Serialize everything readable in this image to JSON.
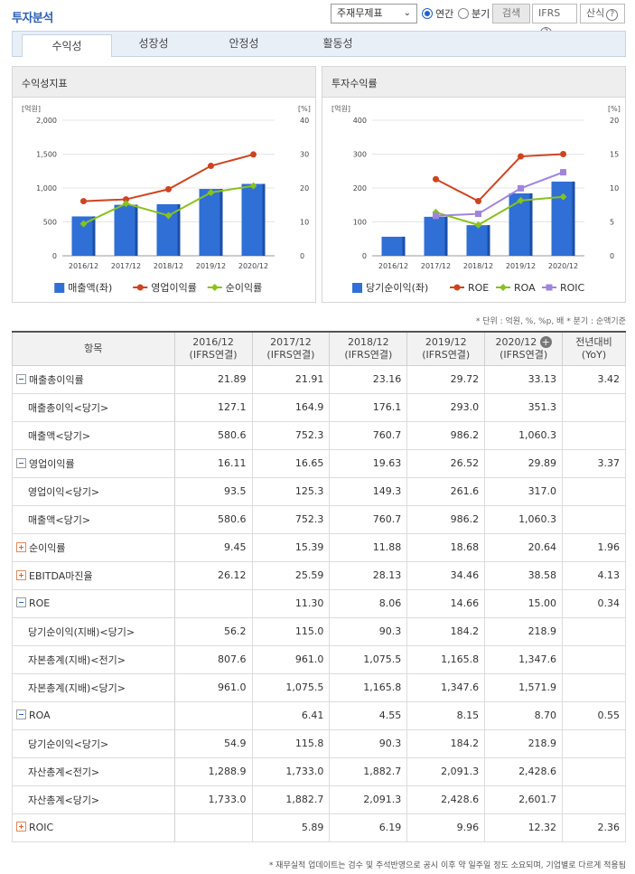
{
  "header": {
    "title": "투자분석",
    "select_value": "주재무제표",
    "radio_annual": "연간",
    "radio_quarter": "분기",
    "search_label": "검색",
    "ifrs_label": "IFRS",
    "calc_label": "산식",
    "help_glyph": "?"
  },
  "tabs": [
    "수익성",
    "성장성",
    "안정성",
    "활동성"
  ],
  "colors": {
    "bar": "#2f6fd6",
    "red": "#d0431f",
    "green": "#88c21c",
    "purple": "#a084dc"
  },
  "chart_data": [
    {
      "type": "bar+line",
      "title": "수익성지표",
      "categories": [
        "2016/12",
        "2017/12",
        "2018/12",
        "2019/12",
        "2020/12"
      ],
      "left_unit": "[억원]",
      "right_unit": "[%]",
      "left_ylim": [
        0,
        2000
      ],
      "left_ticks": [
        "0",
        "500",
        "1,000",
        "1,500",
        "2,000"
      ],
      "right_ylim": [
        0,
        40
      ],
      "right_ticks": [
        "0",
        "10",
        "20",
        "30",
        "40"
      ],
      "bar_series": {
        "name": "매출액(좌)",
        "values": [
          580.6,
          752.3,
          760.7,
          986.2,
          1060.3
        ]
      },
      "line_series": [
        {
          "name": "영업이익률",
          "values": [
            16.11,
            16.65,
            19.63,
            26.52,
            29.89
          ]
        },
        {
          "name": "순이익률",
          "values": [
            9.45,
            15.39,
            11.88,
            18.68,
            20.64
          ]
        }
      ]
    },
    {
      "type": "bar+line",
      "title": "투자수익률",
      "categories": [
        "2016/12",
        "2017/12",
        "2018/12",
        "2019/12",
        "2020/12"
      ],
      "left_unit": "[억원]",
      "right_unit": "[%]",
      "left_ylim": [
        0,
        400
      ],
      "left_ticks": [
        "0",
        "100",
        "200",
        "300",
        "400"
      ],
      "right_ylim": [
        0,
        20
      ],
      "right_ticks": [
        "0",
        "5",
        "10",
        "15",
        "20"
      ],
      "bar_series": {
        "name": "당기순이익(좌)",
        "values": [
          56.2,
          115.0,
          90.3,
          184.2,
          218.9
        ]
      },
      "line_series": [
        {
          "name": "ROE",
          "values": [
            null,
            11.3,
            8.06,
            14.66,
            15.0
          ]
        },
        {
          "name": "ROA",
          "values": [
            null,
            6.41,
            4.55,
            8.15,
            8.7
          ]
        },
        {
          "name": "ROIC",
          "values": [
            null,
            5.89,
            6.19,
            9.96,
            12.32
          ]
        }
      ]
    }
  ],
  "units_note": "* 단위 : 억원, %, %p, 배   * 분기 : 순액기준",
  "table": {
    "col_item": "항목",
    "periods": [
      {
        "year": "2016/12",
        "basis": "(IFRS연결)"
      },
      {
        "year": "2017/12",
        "basis": "(IFRS연결)"
      },
      {
        "year": "2018/12",
        "basis": "(IFRS연결)"
      },
      {
        "year": "2019/12",
        "basis": "(IFRS연결)"
      },
      {
        "year": "2020/12",
        "basis": "(IFRS연결)"
      }
    ],
    "yoy_label": "전년대비",
    "yoy_sub": "(YoY)",
    "rows": [
      {
        "label": "매출총이익률",
        "toggle": "minus",
        "level": 0,
        "values": [
          "21.89",
          "21.91",
          "23.16",
          "29.72",
          "33.13",
          "3.42"
        ]
      },
      {
        "label": "매출총이익<당기>",
        "level": 1,
        "values": [
          "127.1",
          "164.9",
          "176.1",
          "293.0",
          "351.3",
          ""
        ]
      },
      {
        "label": "매출액<당기>",
        "level": 1,
        "values": [
          "580.6",
          "752.3",
          "760.7",
          "986.2",
          "1,060.3",
          ""
        ]
      },
      {
        "label": "영업이익률",
        "toggle": "minus",
        "level": 0,
        "values": [
          "16.11",
          "16.65",
          "19.63",
          "26.52",
          "29.89",
          "3.37"
        ]
      },
      {
        "label": "영업이익<당기>",
        "level": 1,
        "values": [
          "93.5",
          "125.3",
          "149.3",
          "261.6",
          "317.0",
          ""
        ]
      },
      {
        "label": "매출액<당기>",
        "level": 1,
        "values": [
          "580.6",
          "752.3",
          "760.7",
          "986.2",
          "1,060.3",
          ""
        ]
      },
      {
        "label": "순이익률",
        "toggle": "plus",
        "level": 0,
        "values": [
          "9.45",
          "15.39",
          "11.88",
          "18.68",
          "20.64",
          "1.96"
        ]
      },
      {
        "label": "EBITDA마진율",
        "toggle": "plus",
        "level": 0,
        "values": [
          "26.12",
          "25.59",
          "28.13",
          "34.46",
          "38.58",
          "4.13"
        ]
      },
      {
        "label": "ROE",
        "toggle": "minus",
        "level": 0,
        "values": [
          "",
          "11.30",
          "8.06",
          "14.66",
          "15.00",
          "0.34"
        ]
      },
      {
        "label": "당기순이익(지배)<당기>",
        "level": 1,
        "values": [
          "56.2",
          "115.0",
          "90.3",
          "184.2",
          "218.9",
          ""
        ]
      },
      {
        "label": "자본총계(지배)<전기>",
        "level": 1,
        "values": [
          "807.6",
          "961.0",
          "1,075.5",
          "1,165.8",
          "1,347.6",
          ""
        ]
      },
      {
        "label": "자본총계(지배)<당기>",
        "level": 1,
        "values": [
          "961.0",
          "1,075.5",
          "1,165.8",
          "1,347.6",
          "1,571.9",
          ""
        ]
      },
      {
        "label": "ROA",
        "toggle": "minus",
        "level": 0,
        "values": [
          "",
          "6.41",
          "4.55",
          "8.15",
          "8.70",
          "0.55"
        ]
      },
      {
        "label": "당기순이익<당기>",
        "level": 1,
        "values": [
          "54.9",
          "115.8",
          "90.3",
          "184.2",
          "218.9",
          ""
        ]
      },
      {
        "label": "자산총계<전기>",
        "level": 1,
        "values": [
          "1,288.9",
          "1,733.0",
          "1,882.7",
          "2,091.3",
          "2,428.6",
          ""
        ]
      },
      {
        "label": "자산총계<당기>",
        "level": 1,
        "values": [
          "1,733.0",
          "1,882.7",
          "2,091.3",
          "2,428.6",
          "2,601.7",
          ""
        ]
      },
      {
        "label": "ROIC",
        "toggle": "plus",
        "level": 0,
        "values": [
          "",
          "5.89",
          "6.19",
          "9.96",
          "12.32",
          "2.36"
        ]
      }
    ]
  },
  "footnote": "* 재무실적 업데이트는 검수 및 주석반영으로 공시 이후 약 일주일 정도 소요되며, 기업별로 다르게 적용됨"
}
